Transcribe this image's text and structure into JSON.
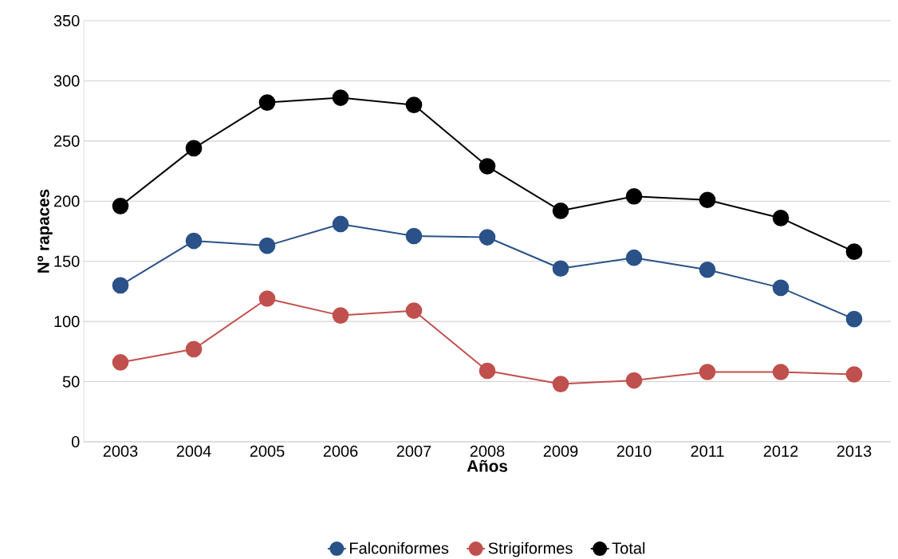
{
  "chart_data": {
    "type": "line",
    "xlabel": "Años",
    "ylabel": "Nº rapaces",
    "categories": [
      "2003",
      "2004",
      "2005",
      "2006",
      "2007",
      "2008",
      "2009",
      "2010",
      "2011",
      "2012",
      "2013"
    ],
    "series": [
      {
        "name": "Falconiformes",
        "color": "#2a5288",
        "values": [
          130,
          167,
          163,
          181,
          171,
          170,
          144,
          153,
          143,
          128,
          102
        ]
      },
      {
        "name": "Strigiformes",
        "color": "#c0504d",
        "values": [
          66,
          77,
          119,
          105,
          109,
          59,
          48,
          51,
          58,
          58,
          56
        ]
      },
      {
        "name": "Total",
        "color": "#000000",
        "values": [
          196,
          244,
          282,
          286,
          280,
          229,
          192,
          204,
          201,
          186,
          158
        ]
      }
    ],
    "ylim": [
      0,
      350
    ],
    "yticks": [
      0,
      50,
      100,
      150,
      200,
      250,
      300,
      350
    ],
    "grid": "y",
    "legend": "bottom",
    "marker": "circle",
    "line_style": "solid"
  }
}
